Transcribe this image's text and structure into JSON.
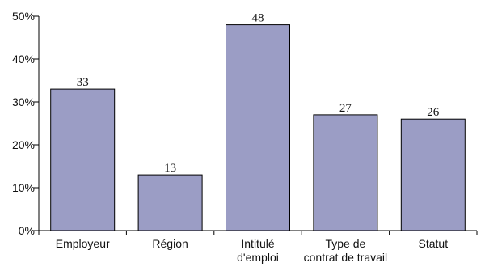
{
  "chart_data": {
    "type": "bar",
    "categories": [
      [
        "Employeur"
      ],
      [
        "Région"
      ],
      [
        "Intitulé",
        "d'emploi"
      ],
      [
        "Type de",
        "contrat de travail"
      ],
      [
        "Statut"
      ]
    ],
    "values": [
      33,
      13,
      48,
      27,
      26
    ],
    "data_labels": [
      "33",
      "13",
      "48",
      "27",
      "26"
    ],
    "y_ticks": [
      {
        "value": 0,
        "label": "0%"
      },
      {
        "value": 10,
        "label": "10%"
      },
      {
        "value": 20,
        "label": "20%"
      },
      {
        "value": 30,
        "label": "30%"
      },
      {
        "value": 40,
        "label": "40%"
      },
      {
        "value": 50,
        "label": "50%"
      }
    ],
    "ylim": [
      0,
      50
    ],
    "grid": false,
    "legend": "none",
    "title": "",
    "xlabel": "",
    "ylabel": "",
    "bar_color": "#9b9dc5"
  }
}
